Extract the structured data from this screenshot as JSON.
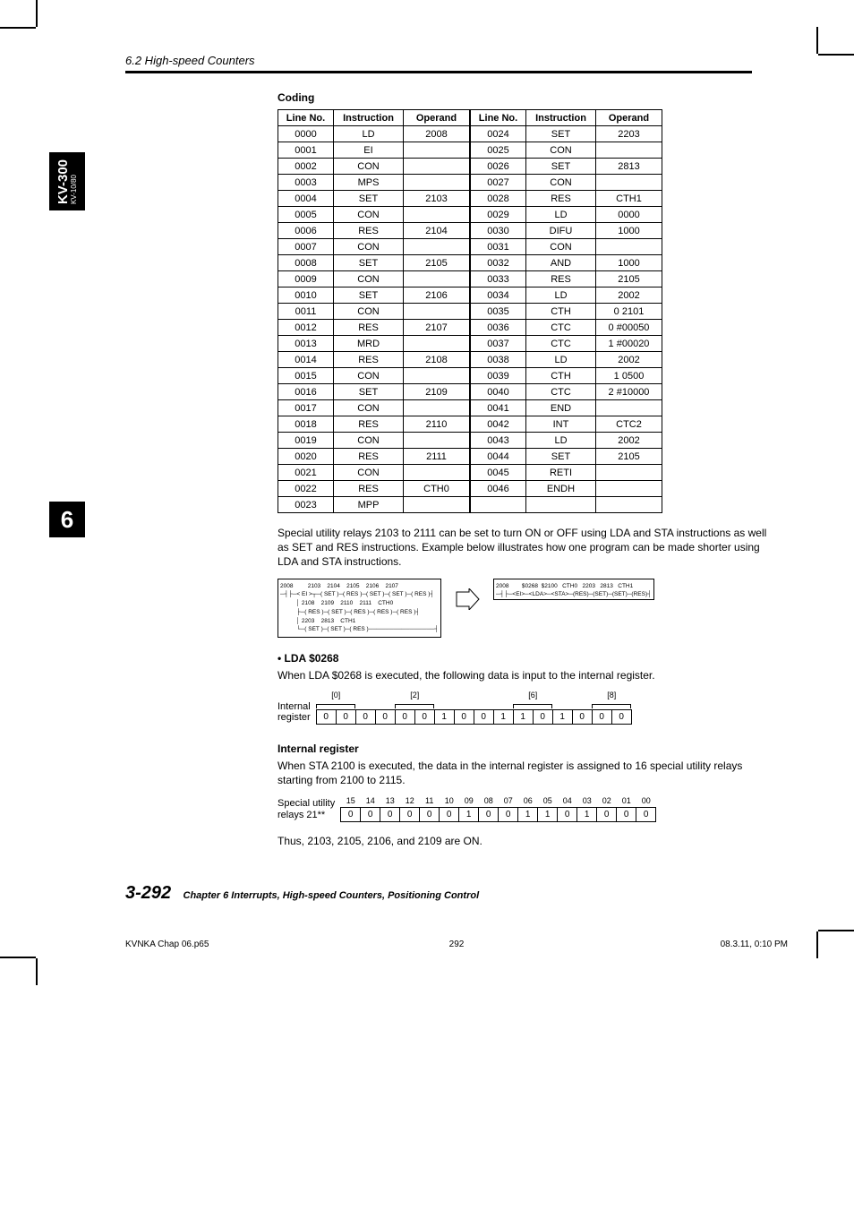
{
  "header_section": "6.2  High-speed Counters",
  "side_tab_main": "KV-300",
  "side_tab_sub": "KV-10/80",
  "side_num": "6",
  "coding_title": "Coding",
  "coding_table": {
    "columns": [
      "Line No.",
      "Instruction",
      "Operand"
    ],
    "left": [
      [
        "0000",
        "LD",
        "2008"
      ],
      [
        "0001",
        "EI",
        ""
      ],
      [
        "0002",
        "CON",
        ""
      ],
      [
        "0003",
        "MPS",
        ""
      ],
      [
        "0004",
        "SET",
        "2103"
      ],
      [
        "0005",
        "CON",
        ""
      ],
      [
        "0006",
        "RES",
        "2104"
      ],
      [
        "0007",
        "CON",
        ""
      ],
      [
        "0008",
        "SET",
        "2105"
      ],
      [
        "0009",
        "CON",
        ""
      ],
      [
        "0010",
        "SET",
        "2106"
      ],
      [
        "0011",
        "CON",
        ""
      ],
      [
        "0012",
        "RES",
        "2107"
      ],
      [
        "0013",
        "MRD",
        ""
      ],
      [
        "0014",
        "RES",
        "2108"
      ],
      [
        "0015",
        "CON",
        ""
      ],
      [
        "0016",
        "SET",
        "2109"
      ],
      [
        "0017",
        "CON",
        ""
      ],
      [
        "0018",
        "RES",
        "2110"
      ],
      [
        "0019",
        "CON",
        ""
      ],
      [
        "0020",
        "RES",
        "2111"
      ],
      [
        "0021",
        "CON",
        ""
      ],
      [
        "0022",
        "RES",
        "CTH0"
      ],
      [
        "0023",
        "MPP",
        ""
      ]
    ],
    "right": [
      [
        "0024",
        "SET",
        "2203"
      ],
      [
        "0025",
        "CON",
        ""
      ],
      [
        "0026",
        "SET",
        "2813"
      ],
      [
        "0027",
        "CON",
        ""
      ],
      [
        "0028",
        "RES",
        "CTH1"
      ],
      [
        "0029",
        "LD",
        "0000"
      ],
      [
        "0030",
        "DIFU",
        "1000"
      ],
      [
        "0031",
        "CON",
        ""
      ],
      [
        "0032",
        "AND",
        "1000"
      ],
      [
        "0033",
        "RES",
        "2105"
      ],
      [
        "0034",
        "LD",
        "2002"
      ],
      [
        "0035",
        "CTH",
        "0  2101"
      ],
      [
        "0036",
        "CTC",
        "0  #00050"
      ],
      [
        "0037",
        "CTC",
        "1  #00020"
      ],
      [
        "0038",
        "LD",
        "2002"
      ],
      [
        "0039",
        "CTH",
        "1  0500"
      ],
      [
        "0040",
        "CTC",
        "2  #10000"
      ],
      [
        "0041",
        "END",
        ""
      ],
      [
        "0042",
        "INT",
        "CTC2"
      ],
      [
        "0043",
        "LD",
        "2002"
      ],
      [
        "0044",
        "SET",
        "2105"
      ],
      [
        "0045",
        "RETI",
        ""
      ],
      [
        "0046",
        "ENDH",
        ""
      ]
    ]
  },
  "para1": "Special utility relays 2103 to 2111 can be set to turn ON or OFF using LDA and STA instructions as well as SET and RES instructions. Example below illustrates how one program can be made shorter using LDA and STA instructions.",
  "ladder_left_lines": [
    "2008         2103    2104    2105    2106    2107",
    "─┤├─< EI >┬─( SET )─( RES )─( SET )─( SET )─( RES )┤",
    "          │ 2108    2109    2110    2111    CTH0",
    "          ├─( RES )─( SET )─( RES )─( RES )─( RES )┤",
    "          │ 2203    2813    CTH1",
    "          └─( SET )─( SET )─( RES )────────────────┤"
  ],
  "ladder_right_lines": [
    "2008        $0268  $2100   CTH0   2203   2813   CTH1",
    "─┤├─<EI>─<LDA>─<STA>─(RES)─(SET)─(SET)─(RES)┤"
  ],
  "lda_head": "• LDA $0268",
  "lda_para": "When LDA $0268 is executed, the following data is input to the internal register.",
  "internal_register": {
    "label": "Internal\nregister",
    "marks": [
      "[0]",
      "",
      "[2]",
      "",
      "",
      "[6]",
      "",
      "[8]"
    ],
    "bits": [
      "0",
      "0",
      "0",
      "0",
      "0",
      "0",
      "1",
      "0",
      "0",
      "1",
      "1",
      "0",
      "1",
      "0",
      "0",
      "0"
    ]
  },
  "ir_head": "Internal register",
  "ir_para": "When STA 2100 is executed, the data in the internal register is assigned to 16 special utility relays starting from 2100 to 2115.",
  "special_utility": {
    "label": "Special utility\nrelays 21**",
    "nums": [
      "15",
      "14",
      "13",
      "12",
      "11",
      "10",
      "09",
      "08",
      "07",
      "06",
      "05",
      "04",
      "03",
      "02",
      "01",
      "00"
    ],
    "bits": [
      "0",
      "0",
      "0",
      "0",
      "0",
      "0",
      "1",
      "0",
      "0",
      "1",
      "1",
      "0",
      "1",
      "0",
      "0",
      "0"
    ]
  },
  "thus": "Thus, 2103, 2105, 2106, and 2109 are ON.",
  "footer_pn": "3-292",
  "footer_ch": "Chapter 6   Interrupts, High-speed Counters, Positioning Control",
  "print_left": "KVNKA Chap 06.p65",
  "print_center": "292",
  "print_right": "08.3.11, 0:10 PM"
}
